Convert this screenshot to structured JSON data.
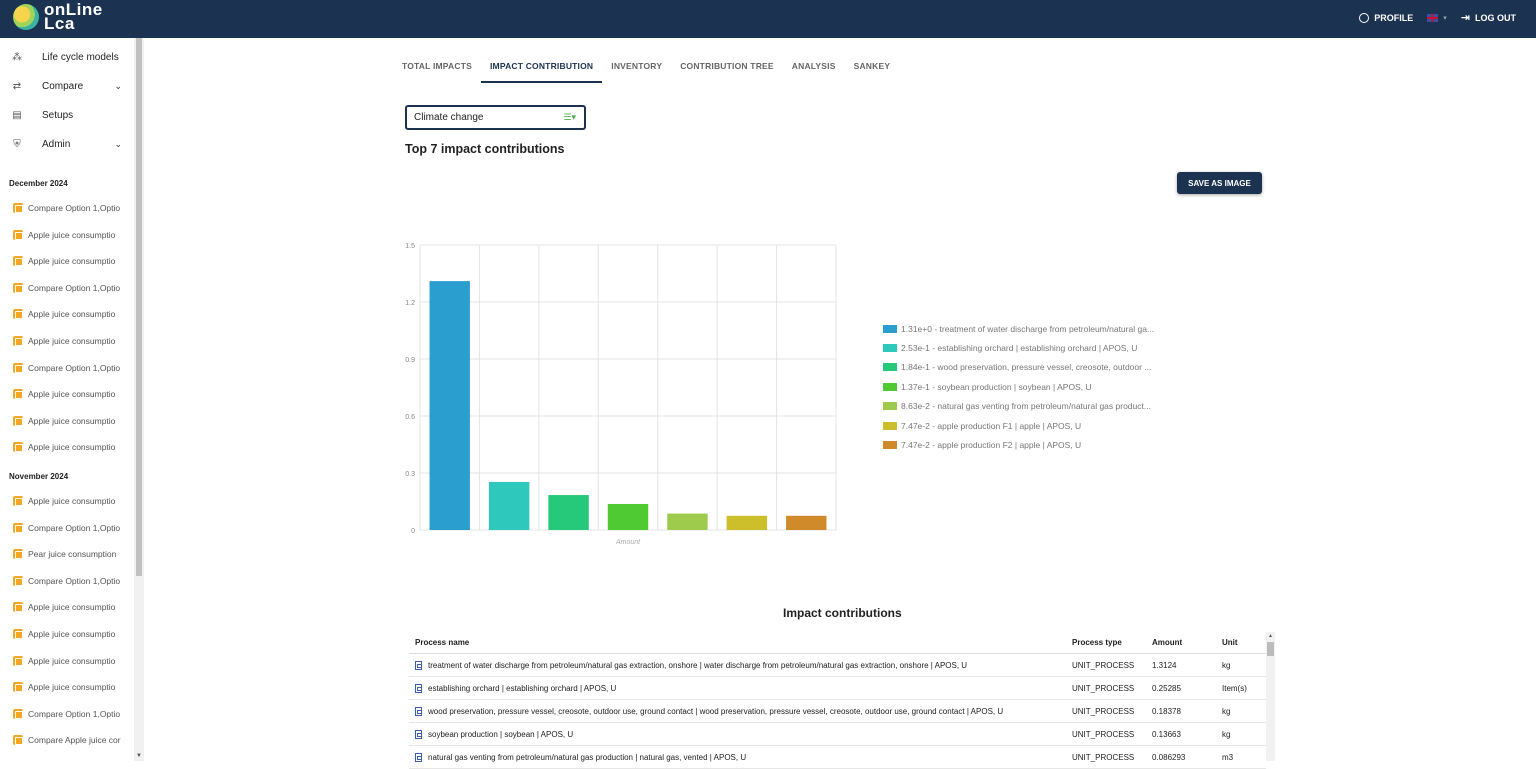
{
  "header": {
    "logo_line1": "onLine",
    "logo_line2": "Lca",
    "profile_label": "PROFILE",
    "logout_label": "LOG OUT"
  },
  "sidebar": {
    "nav": [
      {
        "label": "Life cycle models",
        "icon": "sitemap-icon"
      },
      {
        "label": "Compare",
        "icon": "compare-arrows-icon",
        "has_chevron": true
      },
      {
        "label": "Setups",
        "icon": "archive-box-icon"
      },
      {
        "label": "Admin",
        "icon": "shield-gear-icon",
        "has_chevron": true
      }
    ],
    "groups": [
      {
        "month": "December 2024",
        "items": [
          "Compare Option 1,Optio",
          "Apple juice consumptio",
          "Apple juice consumptio",
          "Compare Option 1,Optio",
          "Apple juice consumptio",
          "Apple juice consumptio",
          "Compare Option 1,Optio",
          "Apple juice consumptio",
          "Apple juice consumptio",
          "Apple juice consumptio"
        ]
      },
      {
        "month": "November 2024",
        "items": [
          "Apple juice consumptio",
          "Compare Option 1,Optio",
          "Pear juice consumption",
          "Compare Option 1,Optio",
          "Apple juice consumptio",
          "Apple juice consumptio",
          "Apple juice consumptio",
          "Apple juice consumptio",
          "Compare Option 1,Optio",
          "Compare Apple juice cor"
        ]
      }
    ]
  },
  "tabs": [
    {
      "label": "TOTAL IMPACTS",
      "active": false
    },
    {
      "label": "IMPACT CONTRIBUTION",
      "active": true
    },
    {
      "label": "INVENTORY",
      "active": false
    },
    {
      "label": "CONTRIBUTION TREE",
      "active": false
    },
    {
      "label": "ANALYSIS",
      "active": false
    },
    {
      "label": "SANKEY",
      "active": false
    }
  ],
  "impact_select": {
    "value": "Climate change"
  },
  "heading": "Top 7 impact contributions",
  "save_button": "SAVE AS IMAGE",
  "chart_data": {
    "type": "bar",
    "xlabel": "Amount",
    "ylim": [
      0,
      1.5
    ],
    "yticks": [
      "0",
      "0.3",
      "0.6",
      "0.9",
      "1.2",
      "1.5"
    ],
    "grid": true,
    "legend_position": "right",
    "values": [
      1.31,
      0.253,
      0.184,
      0.137,
      0.0863,
      0.0747,
      0.0747
    ],
    "colors": [
      "#2b9ed0",
      "#2ec8bc",
      "#26c97a",
      "#4fca32",
      "#9fcb4c",
      "#cdbf2c",
      "#d08a2a"
    ],
    "legend": [
      "1.31e+0 - treatment of water discharge from petroleum/natural ga...",
      "2.53e-1 - establishing orchard | establishing orchard | APOS, U",
      "1.84e-1 - wood preservation, pressure vessel, creosote, outdoor ...",
      "1.37e-1 - soybean production | soybean | APOS, U",
      "8.63e-2 - natural gas venting from petroleum/natural gas product...",
      "7.47e-2 - apple production F1 | apple | APOS, U",
      "7.47e-2 - apple production F2 | apple | APOS, U"
    ]
  },
  "table": {
    "title": "Impact contributions",
    "columns": [
      "Process name",
      "Process type",
      "Amount",
      "Unit"
    ],
    "rows": [
      [
        "treatment of water discharge from petroleum/natural gas extraction, onshore | water discharge from petroleum/natural gas extraction, onshore | APOS, U",
        "UNIT_PROCESS",
        "1.3124",
        "kg"
      ],
      [
        "establishing orchard | establishing orchard | APOS, U",
        "UNIT_PROCESS",
        "0.25285",
        "Item(s)"
      ],
      [
        "wood preservation, pressure vessel, creosote, outdoor use, ground contact | wood preservation, pressure vessel, creosote, outdoor use, ground contact | APOS, U",
        "UNIT_PROCESS",
        "0.18378",
        "kg"
      ],
      [
        "soybean production | soybean | APOS, U",
        "UNIT_PROCESS",
        "0.13663",
        "kg"
      ],
      [
        "natural gas venting from petroleum/natural gas production | natural gas, vented | APOS, U",
        "UNIT_PROCESS",
        "0.086293",
        "m3"
      ]
    ]
  }
}
